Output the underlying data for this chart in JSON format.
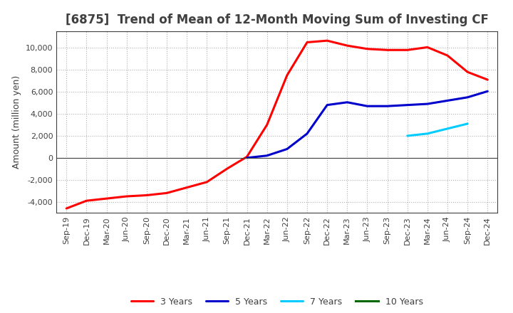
{
  "title": "[6875]  Trend of Mean of 12-Month Moving Sum of Investing CF",
  "ylabel": "Amount (million yen)",
  "background_color": "#ffffff",
  "grid_color": "#b0b0b0",
  "x_labels": [
    "Sep-19",
    "Dec-19",
    "Mar-20",
    "Jun-20",
    "Sep-20",
    "Dec-20",
    "Mar-21",
    "Jun-21",
    "Sep-21",
    "Dec-21",
    "Mar-22",
    "Jun-22",
    "Sep-22",
    "Dec-22",
    "Mar-23",
    "Jun-23",
    "Sep-23",
    "Dec-23",
    "Mar-24",
    "Jun-24",
    "Sep-24",
    "Dec-24"
  ],
  "series": [
    {
      "label": "3 Years",
      "color": "#ff0000",
      "data_x": [
        0,
        1,
        2,
        3,
        4,
        5,
        6,
        7,
        8,
        9,
        10,
        11,
        12,
        13,
        14,
        15,
        16,
        17,
        18,
        19,
        20,
        21
      ],
      "data_y": [
        -4600,
        -3900,
        -3700,
        -3500,
        -3400,
        -3200,
        -2700,
        -2200,
        -1000,
        100,
        3000,
        7500,
        10500,
        10650,
        10200,
        9900,
        9800,
        9800,
        10050,
        9300,
        7800,
        7100
      ]
    },
    {
      "label": "5 Years",
      "color": "#0000cc",
      "data_x": [
        9,
        10,
        11,
        12,
        13,
        14,
        15,
        16,
        17,
        18,
        19,
        20,
        21
      ],
      "data_y": [
        0,
        200,
        800,
        2200,
        4800,
        5050,
        4700,
        4700,
        4800,
        4900,
        5200,
        5500,
        6050
      ]
    },
    {
      "label": "7 Years",
      "color": "#00ccff",
      "data_x": [
        17,
        18,
        19,
        20
      ],
      "data_y": [
        2000,
        2200,
        2650,
        3100
      ]
    },
    {
      "label": "10 Years",
      "color": "#006600",
      "data_x": [],
      "data_y": []
    }
  ],
  "ylim": [
    -5000,
    11500
  ],
  "yticks": [
    -4000,
    -2000,
    0,
    2000,
    4000,
    6000,
    8000,
    10000
  ],
  "title_color": "#404040",
  "title_fontsize": 12,
  "label_fontsize": 9,
  "tick_fontsize": 8,
  "legend_fontsize": 9,
  "line_width": 2.2
}
